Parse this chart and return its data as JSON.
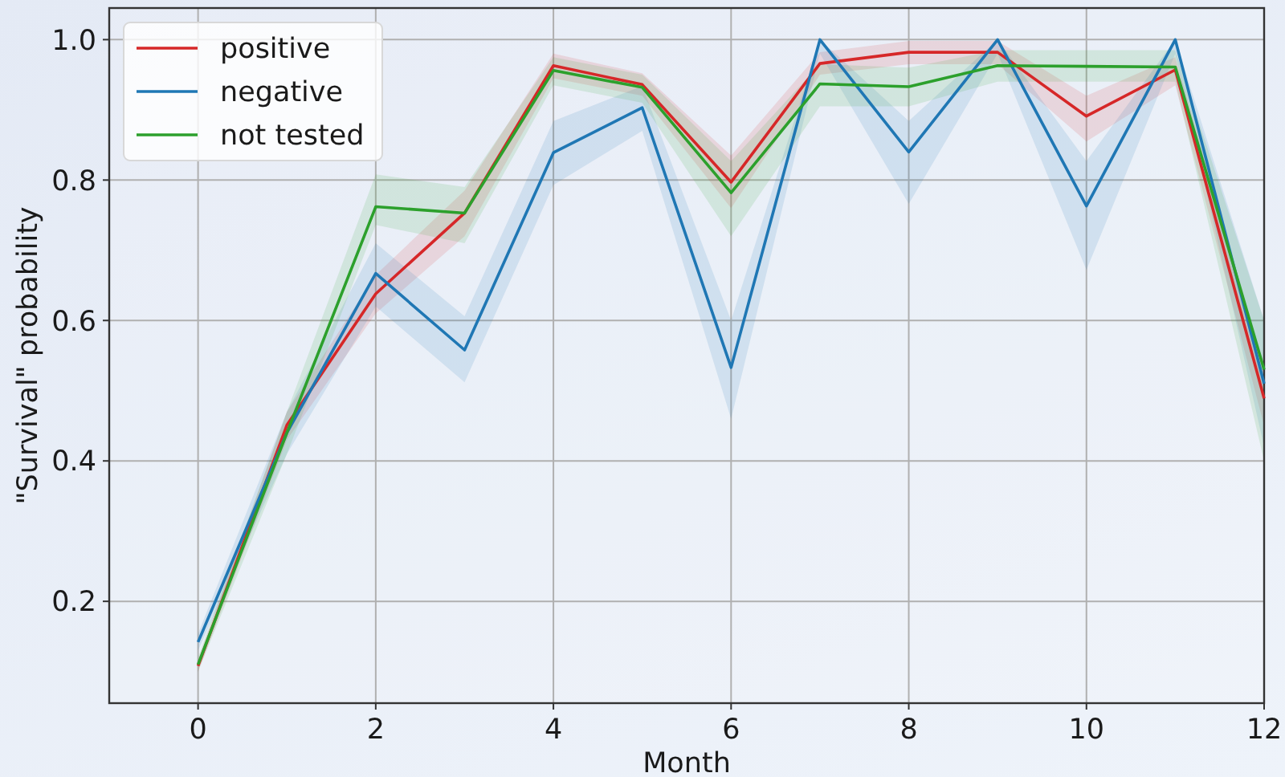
{
  "chart_data": {
    "type": "line",
    "xlabel": "Month",
    "ylabel": "\"Survival\" probability",
    "x": [
      0,
      1,
      2,
      3,
      4,
      5,
      6,
      7,
      8,
      9,
      10,
      11,
      12
    ],
    "series": [
      {
        "name": "positive",
        "color": "#d62728",
        "values": [
          0.108,
          0.451,
          0.638,
          0.753,
          0.963,
          0.936,
          0.797,
          0.966,
          0.982,
          0.982,
          0.891,
          0.957,
          0.489
        ],
        "lower": [
          0.1,
          0.43,
          0.61,
          0.72,
          0.945,
          0.92,
          0.76,
          0.95,
          0.965,
          0.965,
          0.855,
          0.935,
          0.45
        ],
        "upper": [
          0.116,
          0.47,
          0.665,
          0.785,
          0.98,
          0.952,
          0.835,
          0.982,
          0.998,
          0.998,
          0.92,
          0.975,
          0.53
        ]
      },
      {
        "name": "negative",
        "color": "#1f77b4",
        "values": [
          0.142,
          0.44,
          0.667,
          0.558,
          0.839,
          0.903,
          0.533,
          1.0,
          0.84,
          1.0,
          0.763,
          1.0,
          0.51
        ],
        "lower": [
          0.13,
          0.41,
          0.62,
          0.512,
          0.793,
          0.87,
          0.46,
          0.98,
          0.766,
          0.98,
          0.672,
          0.98,
          0.42
        ],
        "upper": [
          0.154,
          0.47,
          0.71,
          0.606,
          0.884,
          0.934,
          0.6,
          1.0,
          0.884,
          1.0,
          0.827,
          1.0,
          0.6
        ]
      },
      {
        "name": "not tested",
        "color": "#2ca02c",
        "values": [
          0.11,
          0.44,
          0.762,
          0.753,
          0.956,
          0.932,
          0.782,
          0.937,
          0.933,
          0.963,
          0.962,
          0.961,
          0.53
        ],
        "lower": [
          0.1,
          0.41,
          0.736,
          0.71,
          0.935,
          0.91,
          0.72,
          0.905,
          0.905,
          0.94,
          0.94,
          0.94,
          0.4
        ],
        "upper": [
          0.12,
          0.47,
          0.808,
          0.79,
          0.975,
          0.95,
          0.827,
          0.965,
          0.96,
          0.985,
          0.985,
          0.985,
          0.6
        ]
      }
    ],
    "xlim": [
      -1,
      12
    ],
    "ylim": [
      0.055,
      1.045
    ],
    "xticks": [
      0,
      2,
      4,
      6,
      8,
      10,
      12
    ],
    "yticks": [
      0.2,
      0.4,
      0.6,
      0.8,
      {
        "value": 1.0,
        "label": "1.0"
      }
    ],
    "grid": true,
    "legend": "top left"
  }
}
